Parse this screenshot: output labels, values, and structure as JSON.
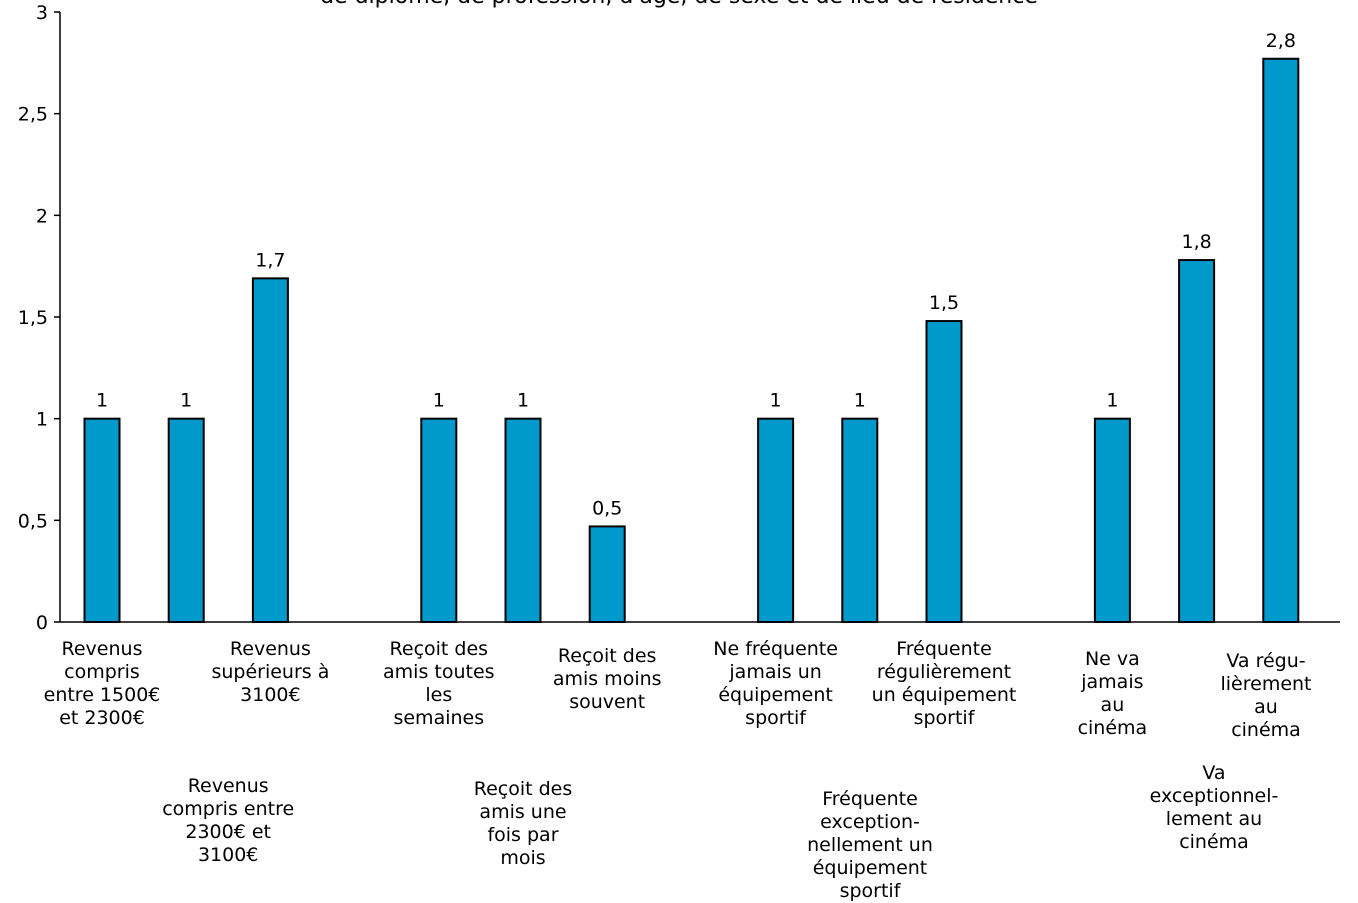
{
  "chart_data": {
    "type": "bar",
    "title": "de diplôme, de profession, d'âge, de sexe et de lieu de résidence",
    "xlabel": "",
    "ylabel": "",
    "ylim": [
      0,
      3
    ],
    "yticks": [
      "0",
      "0,5",
      "1",
      "1,5",
      "2",
      "2,5",
      "3"
    ],
    "bar_color": "#0099cc",
    "grid": false,
    "categories": [
      "Revenus\ncompris\nentre 1500€\net 2300€",
      "Revenus\ncompris entre\n2300€ et\n3100€",
      "Revenus\nsupérieurs à\n3100€",
      "Reçoit des\namis toutes\nles\nsemaines",
      "Reçoit des\namis une\nfois par\nmois",
      "Reçoit des\namis moins\nsouvent",
      "Ne fréquente\njamais un\néquipement\nsportif",
      "Fréquente\nexception-\nnellement un\néquipement sportif",
      "Fréquente\nrégulièrement\nun équipement\nsportif",
      "Ne va\njamais\nau\ncinéma",
      "Va\nexceptionnel-\nlement au\ncinéma",
      "Va régu-\nlièrement\nau\ncinéma"
    ],
    "values": [
      1,
      1,
      1.69,
      1,
      1,
      0.47,
      1,
      1,
      1.48,
      1,
      1.78,
      2.77
    ],
    "data_labels": [
      "1",
      "1",
      "1,7",
      "1",
      "1",
      "0,5",
      "1",
      "1",
      "1,5",
      "1",
      "1,8",
      "2,8"
    ]
  }
}
